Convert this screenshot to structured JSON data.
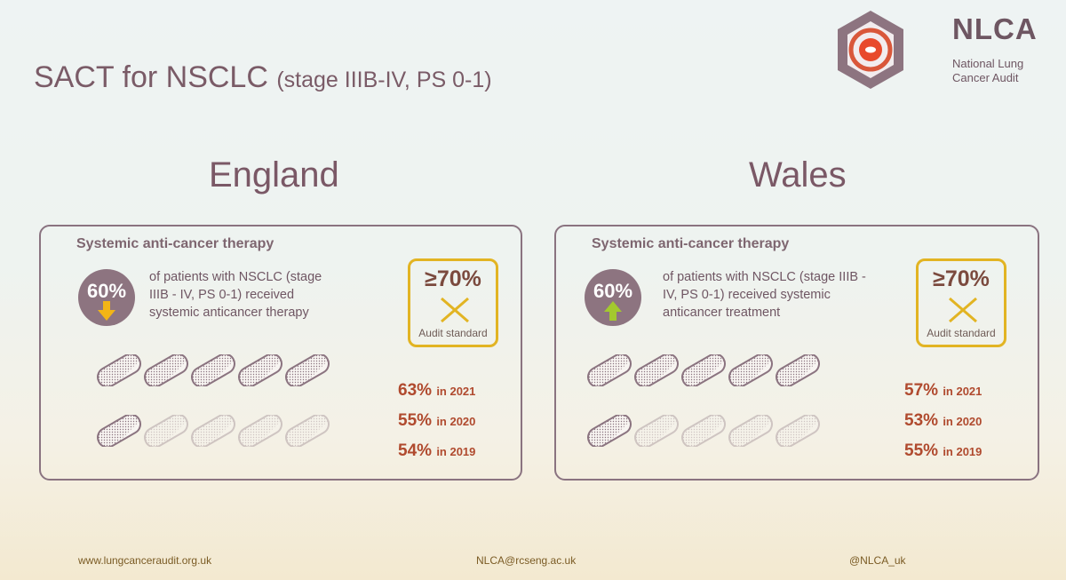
{
  "slide": {
    "title": "SACT for NSCLC",
    "subtitle": "(stage IIIB-IV, PS 0-1)"
  },
  "logo": {
    "name": "NLCA",
    "line1": "National Lung",
    "line2": "Cancer Audit",
    "colors": {
      "hexagon": "#8d7480",
      "ring": "#d9573a",
      "core": "#e84a2c"
    }
  },
  "england": {
    "country": "England",
    "heading": "Systemic anti-cancer therapy",
    "stat_value": "60%",
    "trend": "down",
    "trend_icon": "arrow-down-icon",
    "trend_color": "#f2b516",
    "stat_text": "of patients with NSCLC (stage IIIB - IV, PS 0-1) received systemic anticancer therapy",
    "standard_value": "≥70%",
    "standard_label": "Audit standard",
    "standard_met": false,
    "pills_total": 10,
    "pills_filled": 6,
    "years": [
      {
        "value": "63%",
        "label": "in 2021"
      },
      {
        "value": "55%",
        "label": "in 2020"
      },
      {
        "value": "54%",
        "label": "in 2019"
      }
    ]
  },
  "wales": {
    "country": "Wales",
    "heading": "Systemic anti-cancer therapy",
    "stat_value": "60%",
    "trend": "up",
    "trend_icon": "arrow-up-icon",
    "trend_color": "#a3c92e",
    "stat_text": "of patients with NSCLC (stage IIIB - IV, PS 0-1) received systemic anticancer treatment",
    "standard_value": "≥70%",
    "standard_label": "Audit standard",
    "standard_met": false,
    "pills_total": 10,
    "pills_filled": 6,
    "years": [
      {
        "value": "57%",
        "label": "in 2021"
      },
      {
        "value": "53%",
        "label": "in 2020"
      },
      {
        "value": "55%",
        "label": "in 2019"
      }
    ]
  },
  "colors": {
    "accent": "#7a5b67",
    "standard_border": "#e2b423",
    "year_text": "#b04a2e"
  },
  "footer": {
    "website": "www.lungcanceraudit.org.uk",
    "email": "NLCA@rcseng.ac.uk",
    "handle": "@NLCA_uk"
  }
}
